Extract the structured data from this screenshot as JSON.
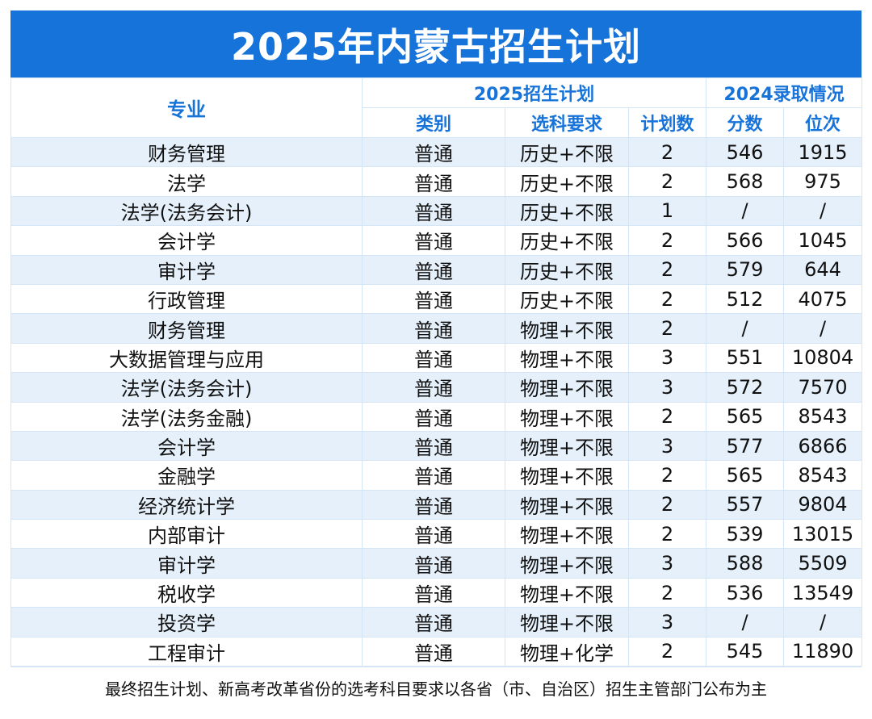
{
  "title": "2025年内蒙古招生计划",
  "header": {
    "major": "专业",
    "plan_group": "2025招生计划",
    "admit_group": "2024录取情况",
    "category": "类别",
    "subjects": "选科要求",
    "plan_count": "计划数",
    "score": "分数",
    "rank": "位次"
  },
  "rows": [
    {
      "major": "财务管理",
      "category": "普通",
      "subjects": "历史+不限",
      "plan": "2",
      "score": "546",
      "rank": "1915"
    },
    {
      "major": "法学",
      "category": "普通",
      "subjects": "历史+不限",
      "plan": "2",
      "score": "568",
      "rank": "975"
    },
    {
      "major": "法学(法务会计)",
      "category": "普通",
      "subjects": "历史+不限",
      "plan": "1",
      "score": "/",
      "rank": "/"
    },
    {
      "major": "会计学",
      "category": "普通",
      "subjects": "历史+不限",
      "plan": "2",
      "score": "566",
      "rank": "1045"
    },
    {
      "major": "审计学",
      "category": "普通",
      "subjects": "历史+不限",
      "plan": "2",
      "score": "579",
      "rank": "644"
    },
    {
      "major": "行政管理",
      "category": "普通",
      "subjects": "历史+不限",
      "plan": "2",
      "score": "512",
      "rank": "4075"
    },
    {
      "major": "财务管理",
      "category": "普通",
      "subjects": "物理+不限",
      "plan": "2",
      "score": "/",
      "rank": "/"
    },
    {
      "major": "大数据管理与应用",
      "category": "普通",
      "subjects": "物理+不限",
      "plan": "3",
      "score": "551",
      "rank": "10804"
    },
    {
      "major": "法学(法务会计)",
      "category": "普通",
      "subjects": "物理+不限",
      "plan": "3",
      "score": "572",
      "rank": "7570"
    },
    {
      "major": "法学(法务金融)",
      "category": "普通",
      "subjects": "物理+不限",
      "plan": "2",
      "score": "565",
      "rank": "8543"
    },
    {
      "major": "会计学",
      "category": "普通",
      "subjects": "物理+不限",
      "plan": "3",
      "score": "577",
      "rank": "6866"
    },
    {
      "major": "金融学",
      "category": "普通",
      "subjects": "物理+不限",
      "plan": "2",
      "score": "565",
      "rank": "8543"
    },
    {
      "major": "经济统计学",
      "category": "普通",
      "subjects": "物理+不限",
      "plan": "2",
      "score": "557",
      "rank": "9804"
    },
    {
      "major": "内部审计",
      "category": "普通",
      "subjects": "物理+不限",
      "plan": "2",
      "score": "539",
      "rank": "13015"
    },
    {
      "major": "审计学",
      "category": "普通",
      "subjects": "物理+不限",
      "plan": "3",
      "score": "588",
      "rank": "5509"
    },
    {
      "major": "税收学",
      "category": "普通",
      "subjects": "物理+不限",
      "plan": "2",
      "score": "536",
      "rank": "13549"
    },
    {
      "major": "投资学",
      "category": "普通",
      "subjects": "物理+不限",
      "plan": "3",
      "score": "/",
      "rank": "/"
    },
    {
      "major": "工程审计",
      "category": "普通",
      "subjects": "物理+化学",
      "plan": "2",
      "score": "545",
      "rank": "11890"
    }
  ],
  "footnote": "最终招生计划、新高考改革省份的选考科目要求以各省（市、自治区）招生主管部门公布为主",
  "colors": {
    "title_bg": "#1673d9",
    "header_text": "#1673d9",
    "row_alt": "#e5f0fb",
    "border": "#d4e6f5"
  }
}
